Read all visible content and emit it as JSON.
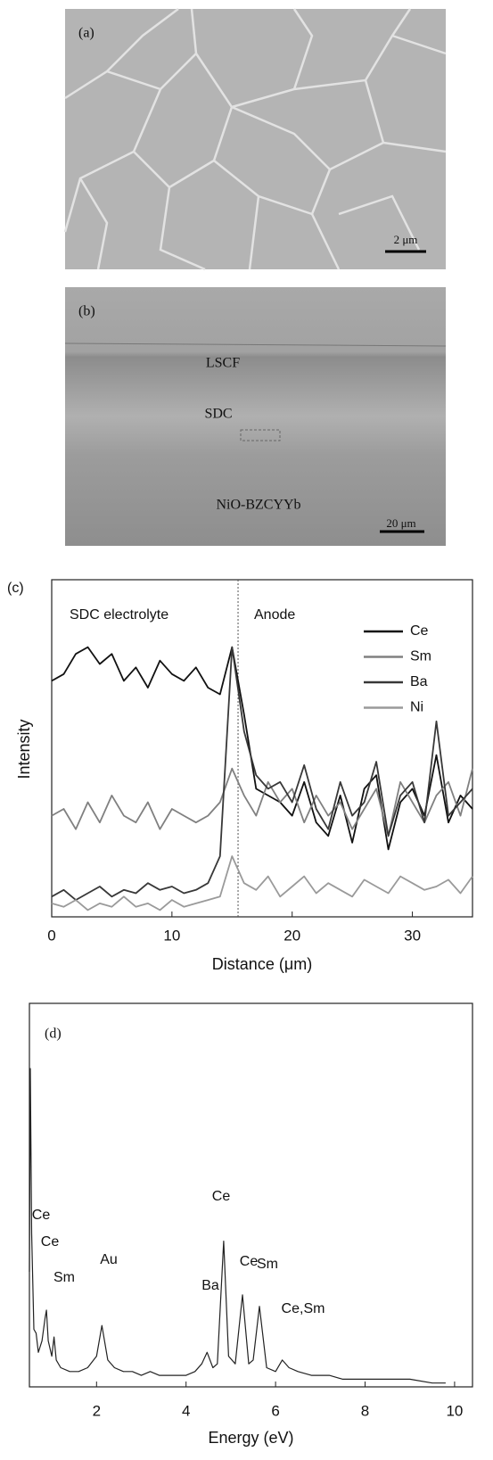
{
  "panels": [
    {
      "label": "(a)",
      "scale_bar": "2 μm"
    },
    {
      "label": "(b)",
      "regions": [
        "LSCF",
        "SDC",
        "NiO-BZCYYb"
      ],
      "scale_bar": "20 μm"
    }
  ],
  "chart_data": [
    {
      "type": "line",
      "panel_label": "(c)",
      "xlabel": "Distance (μm)",
      "ylabel": "Intensity",
      "annotations": [
        "SDC electrolyte",
        "Anode"
      ],
      "vline": 15.5,
      "legend": "upper right",
      "xlim": [
        0,
        35
      ],
      "xticks": [
        0,
        10,
        20,
        30
      ],
      "ylim": [
        0,
        100
      ],
      "x": [
        0,
        1,
        2,
        3,
        4,
        5,
        6,
        7,
        8,
        9,
        10,
        11,
        12,
        13,
        14,
        15,
        16,
        17,
        18,
        19,
        20,
        21,
        22,
        23,
        24,
        25,
        26,
        27,
        28,
        29,
        30,
        31,
        32,
        33,
        34,
        35
      ],
      "series": [
        {
          "name": "Ce",
          "color": "#111111",
          "values": [
            70,
            72,
            78,
            80,
            75,
            78,
            70,
            74,
            68,
            76,
            72,
            70,
            74,
            68,
            66,
            80,
            60,
            38,
            36,
            34,
            30,
            40,
            28,
            24,
            36,
            22,
            38,
            42,
            20,
            34,
            38,
            30,
            48,
            28,
            36,
            32
          ]
        },
        {
          "name": "Sm",
          "color": "#808080",
          "values": [
            30,
            32,
            26,
            34,
            28,
            36,
            30,
            28,
            34,
            26,
            32,
            30,
            28,
            30,
            34,
            44,
            36,
            30,
            40,
            34,
            38,
            28,
            36,
            30,
            34,
            26,
            32,
            38,
            24,
            40,
            34,
            28,
            36,
            40,
            30,
            44
          ]
        },
        {
          "name": "Ba",
          "color": "#383838",
          "values": [
            6,
            8,
            5,
            7,
            9,
            6,
            8,
            7,
            10,
            8,
            9,
            7,
            8,
            10,
            18,
            80,
            55,
            42,
            38,
            40,
            34,
            45,
            32,
            26,
            40,
            30,
            34,
            46,
            24,
            36,
            40,
            28,
            58,
            30,
            34,
            38
          ]
        },
        {
          "name": "Ni",
          "color": "#9a9a9a",
          "values": [
            4,
            3,
            5,
            2,
            4,
            3,
            6,
            3,
            4,
            2,
            5,
            3,
            4,
            5,
            6,
            18,
            10,
            8,
            12,
            6,
            9,
            12,
            7,
            10,
            8,
            6,
            11,
            9,
            7,
            12,
            10,
            8,
            9,
            11,
            7,
            12
          ]
        }
      ]
    },
    {
      "type": "line",
      "panel_label": "(d)",
      "xlabel": "Energy (eV)",
      "annotations": [
        "Ce",
        "Ce",
        "Sm",
        "Au",
        "Ba",
        "Ce",
        "Ce",
        "Sm",
        "Ce,Sm"
      ],
      "xlim": [
        0.5,
        10.4
      ],
      "xticks": [
        2,
        4,
        6,
        8,
        10
      ],
      "ylim": [
        0,
        100
      ],
      "color": "#222222",
      "x": [
        0.5,
        0.52,
        0.55,
        0.6,
        0.65,
        0.7,
        0.78,
        0.85,
        0.88,
        0.92,
        1.0,
        1.05,
        1.1,
        1.2,
        1.4,
        1.6,
        1.8,
        2.0,
        2.12,
        2.25,
        2.4,
        2.6,
        2.8,
        3.0,
        3.2,
        3.4,
        3.6,
        3.8,
        4.0,
        4.2,
        4.35,
        4.47,
        4.6,
        4.7,
        4.84,
        4.95,
        5.1,
        5.26,
        5.4,
        5.5,
        5.64,
        5.8,
        6.0,
        6.15,
        6.3,
        6.5,
        6.8,
        7.0,
        7.2,
        7.5,
        8.0,
        8.5,
        9.0,
        9.5,
        9.8
      ],
      "values": [
        30,
        83,
        40,
        15,
        14,
        9,
        12,
        18,
        20,
        12,
        8,
        13,
        7,
        5,
        4,
        4,
        5,
        8,
        16,
        7,
        5,
        4,
        4,
        3,
        4,
        3,
        3,
        3,
        3,
        4,
        6,
        9,
        5,
        6,
        38,
        8,
        6,
        24,
        6,
        7,
        21,
        5,
        4,
        7,
        5,
        4,
        3,
        3,
        3,
        2,
        2,
        2,
        2,
        1,
        1
      ]
    }
  ]
}
